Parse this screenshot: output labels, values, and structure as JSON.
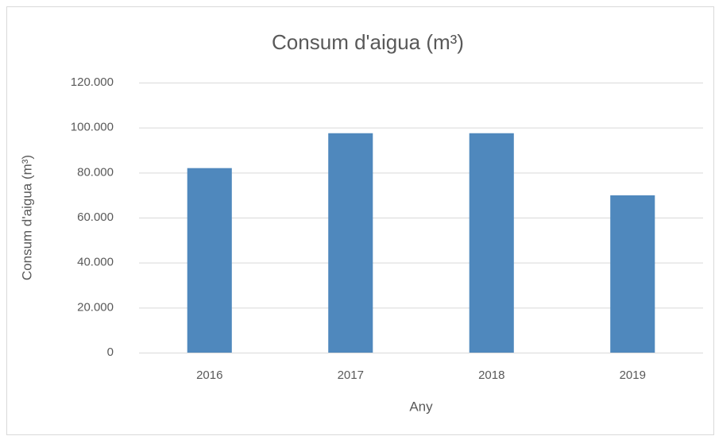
{
  "chart_data": {
    "type": "bar",
    "title": "Consum d'aigua (m³)",
    "x_label": "Any",
    "y_label": "Consum d'aigua (m³)",
    "categories": [
      "2016",
      "2017",
      "2018",
      "2019"
    ],
    "values": [
      82000,
      97500,
      97500,
      69900
    ],
    "color": "#4f88bd",
    "ylim": [
      0,
      120000
    ],
    "yticks": [
      0,
      {
        "value": 20000,
        "label": "20.000"
      },
      {
        "value": 40000,
        "label": "40.000"
      },
      {
        "value": 60000,
        "label": "60.000"
      },
      {
        "value": 80000,
        "label": "80.000"
      },
      {
        "value": 100000,
        "label": "100.000"
      },
      {
        "value": 120000,
        "label": "120.000"
      }
    ],
    "grid": true
  }
}
